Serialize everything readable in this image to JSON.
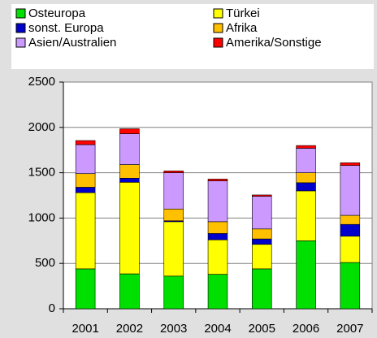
{
  "chart_data": {
    "type": "stacked_bar",
    "categories": [
      "2001",
      "2002",
      "2003",
      "2004",
      "2005",
      "2006",
      "2007"
    ],
    "series": [
      {
        "name": "Osteuropa",
        "color": "#00e000",
        "values": [
          440,
          385,
          360,
          380,
          440,
          750,
          510
        ]
      },
      {
        "name": "Türkei",
        "color": "#ffff00",
        "values": [
          840,
          1010,
          600,
          380,
          270,
          550,
          290
        ]
      },
      {
        "name": "sonst. Europa",
        "color": "#0000cc",
        "values": [
          60,
          45,
          10,
          70,
          60,
          90,
          130
        ]
      },
      {
        "name": "Afrika",
        "color": "#ffc000",
        "values": [
          150,
          150,
          130,
          130,
          110,
          110,
          100
        ]
      },
      {
        "name": "Asien/Australien",
        "color": "#cc99ff",
        "values": [
          320,
          340,
          400,
          450,
          360,
          270,
          550
        ]
      },
      {
        "name": "Amerika/Sonstige",
        "color": "#ff0000",
        "values": [
          45,
          55,
          20,
          20,
          15,
          30,
          30
        ]
      }
    ],
    "ylim": [
      0,
      2500
    ],
    "yticks": [
      0,
      500,
      1000,
      1500,
      2000,
      2500
    ],
    "grid": true,
    "legend": "top"
  }
}
